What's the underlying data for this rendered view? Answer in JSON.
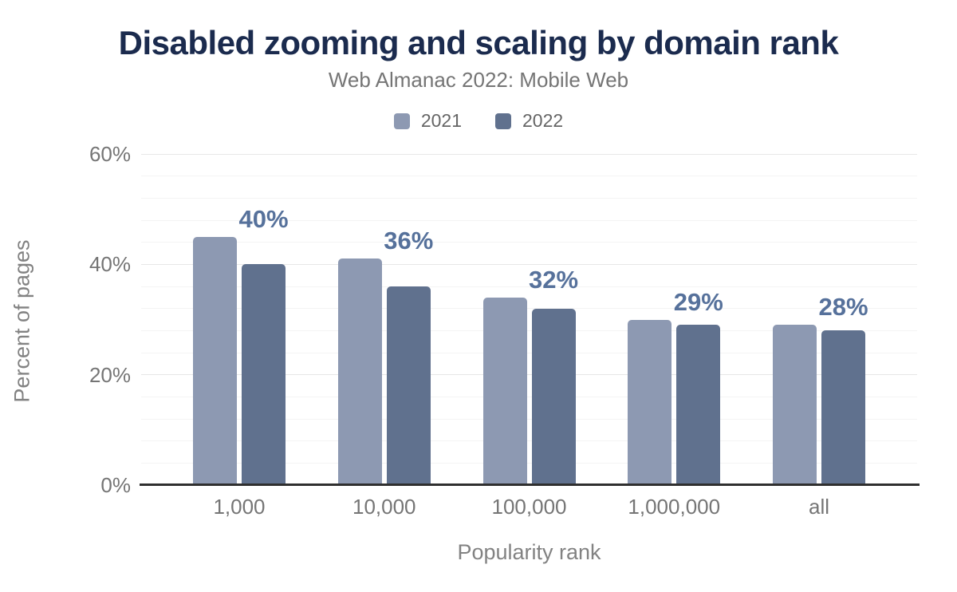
{
  "chart_data": {
    "type": "bar",
    "title": "Disabled zooming and scaling by domain rank",
    "subtitle": "Web Almanac 2022: Mobile Web",
    "categories": [
      "1,000",
      "10,000",
      "100,000",
      "1,000,000",
      "all"
    ],
    "series": [
      {
        "name": "2021",
        "color": "#8d99b2",
        "values": [
          45,
          41,
          34,
          30,
          29
        ]
      },
      {
        "name": "2022",
        "color": "#60718e",
        "values": [
          40,
          36,
          32,
          29,
          28
        ],
        "data_labels": [
          "40%",
          "36%",
          "32%",
          "29%",
          "28%"
        ]
      }
    ],
    "xlabel": "Popularity rank",
    "ylabel": "Percent of pages",
    "ylim": [
      0,
      60
    ],
    "yticks": [
      {
        "value": 0,
        "label": "0%"
      },
      {
        "value": 20,
        "label": "20%"
      },
      {
        "value": 40,
        "label": "40%"
      },
      {
        "value": 60,
        "label": "60%"
      }
    ],
    "minor_grid_step": 4,
    "major_grid_step": 20,
    "grid": true,
    "legend_position": "top",
    "data_label_color": "#56719b",
    "title_color": "#1b2b4e",
    "axis_line_color": "#2f2f2f"
  }
}
